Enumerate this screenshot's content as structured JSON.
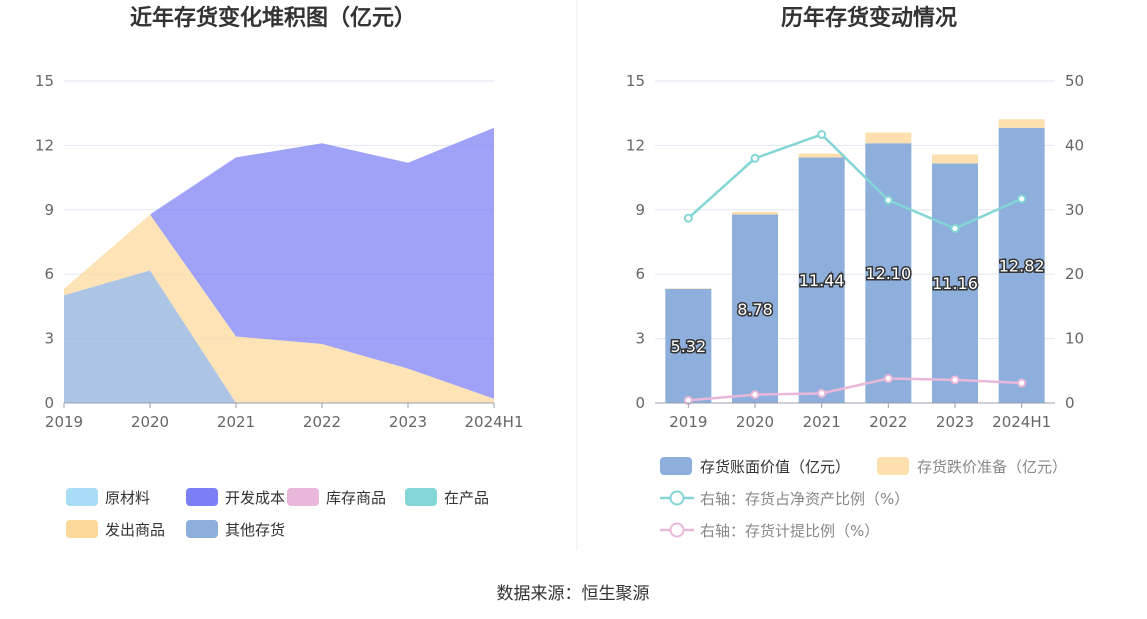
{
  "source_label": "数据来源：恒生聚源",
  "chart_data": [
    {
      "type": "area",
      "stacked": true,
      "title": "近年存货变化堆积图（亿元）",
      "categories": [
        "2019",
        "2020",
        "2021",
        "2022",
        "2023",
        "2024H1"
      ],
      "ylim": [
        0,
        15
      ],
      "yticks": [
        0,
        3,
        6,
        9,
        12,
        15
      ],
      "grid": true,
      "legend_position": "bottom",
      "series": [
        {
          "name": "原材料",
          "color": "#a8dcf7",
          "values": [
            0,
            0,
            0,
            0,
            0,
            0
          ]
        },
        {
          "name": "开发成本",
          "color": "#7b7ef4",
          "values": [
            0,
            0,
            8.34,
            9.35,
            9.59,
            12.62
          ]
        },
        {
          "name": "库存商品",
          "color": "#e9b7d9",
          "values": [
            0,
            0,
            0,
            0,
            0,
            0
          ]
        },
        {
          "name": "在产品",
          "color": "#84d6d6",
          "values": [
            0,
            0,
            0,
            0,
            0,
            0
          ]
        },
        {
          "name": "发出商品",
          "color": "#fed89a",
          "values": [
            0.3,
            2.6,
            3.1,
            2.75,
            1.6,
            0.2
          ]
        },
        {
          "name": "其他存货",
          "color": "#8eaedb",
          "values": [
            5.02,
            6.18,
            0,
            0,
            0,
            0
          ]
        }
      ],
      "stack_order": [
        5,
        4,
        3,
        2,
        1,
        0
      ]
    },
    {
      "type": "bar",
      "title": "历年存货变动情况",
      "categories": [
        "2019",
        "2020",
        "2021",
        "2022",
        "2023",
        "2024H1"
      ],
      "ylim": [
        0,
        15
      ],
      "yticks": [
        0,
        3,
        6,
        9,
        12,
        15
      ],
      "y2lim": [
        0,
        50
      ],
      "y2ticks": [
        0,
        10,
        20,
        30,
        40,
        50
      ],
      "grid": true,
      "legend_position": "bottom",
      "bar_series": [
        {
          "name": "存货账面价值（亿元）",
          "color": "#8eaedb",
          "values": [
            5.32,
            8.78,
            11.44,
            12.1,
            11.16,
            12.82
          ],
          "labels": [
            "5.32",
            "8.78",
            "11.44",
            "12.10",
            "11.16",
            "12.82"
          ]
        },
        {
          "name": "存货跌价准备（亿元）",
          "color": "#fde0ad",
          "values": [
            0.02,
            0.12,
            0.18,
            0.5,
            0.42,
            0.4
          ]
        }
      ],
      "line_series": [
        {
          "name": "右轴：存货占净资产比例（%）",
          "color": "#84d6d6",
          "axis": "right",
          "values": [
            28.7,
            38.0,
            41.7,
            31.5,
            27.1,
            31.7
          ]
        },
        {
          "name": "右轴：存货计提比例（%）",
          "color": "#e9b7d9",
          "axis": "right",
          "values": [
            0.4,
            1.3,
            1.5,
            3.8,
            3.6,
            3.1
          ]
        }
      ]
    }
  ]
}
